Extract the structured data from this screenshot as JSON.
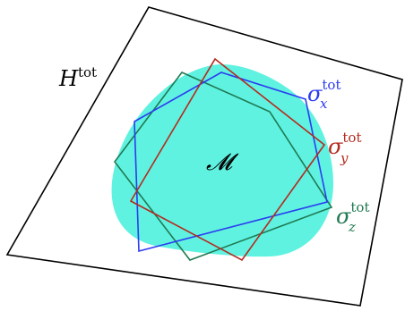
{
  "labels": {
    "hamiltonian": {
      "base": "H",
      "superscript": "tot"
    },
    "manifold": {
      "base": "𝓜"
    },
    "sigma_x": {
      "base": "σ",
      "superscript": "tot",
      "subscript": "x"
    },
    "sigma_y": {
      "base": "σ",
      "superscript": "tot",
      "subscript": "y"
    },
    "sigma_z": {
      "base": "σ",
      "superscript": "tot",
      "subscript": "z"
    }
  },
  "colors": {
    "outline": "#000000",
    "manifold_fill": "#5ff2e0",
    "sigma_x": "#2b3cf0",
    "sigma_y": "#b52a1e",
    "sigma_z": "#1f7a52"
  }
}
